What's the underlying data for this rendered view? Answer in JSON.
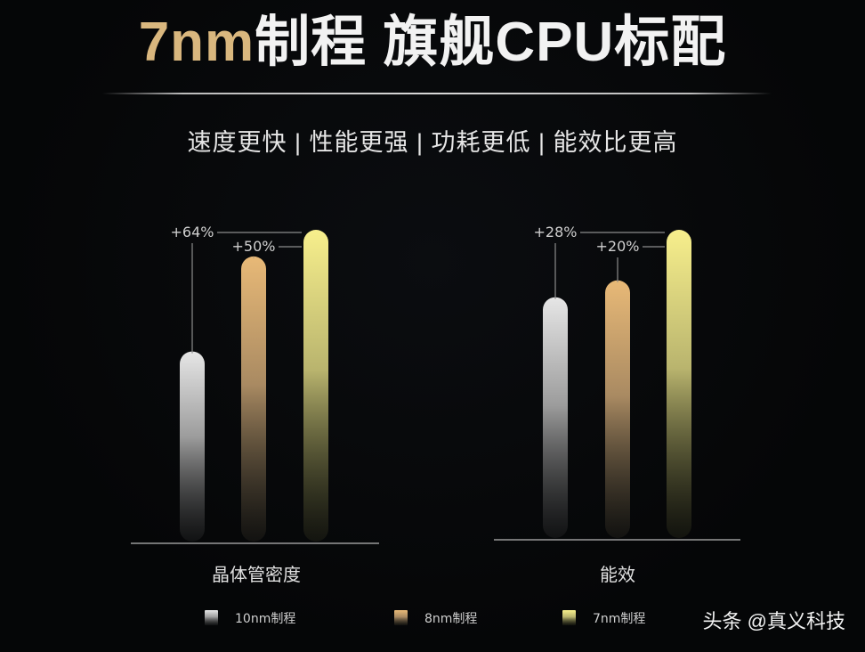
{
  "title": {
    "highlight": "7nm",
    "rest": "制程  旗舰CPU标配"
  },
  "subtitle": "速度更快 | 性能更强 | 功耗更低 | 能效比更高",
  "chart_data": {
    "type": "bar",
    "series": [
      {
        "name": "10nm制程",
        "color": "#d9d9d9"
      },
      {
        "name": "8nm制程",
        "color": "#e2b778"
      },
      {
        "name": "7nm制程",
        "color": "#f3ec8a"
      }
    ],
    "groups": [
      {
        "category": "晶体管密度",
        "values": [
          100,
          150,
          164
        ],
        "annotations": [
          "+64%",
          "+50%"
        ]
      },
      {
        "category": "能效",
        "values": [
          100,
          107,
          128
        ],
        "annotations": [
          "+28%",
          "+20%"
        ]
      }
    ],
    "legend_placement": "bottom"
  },
  "watermark": "头条 @真义科技"
}
